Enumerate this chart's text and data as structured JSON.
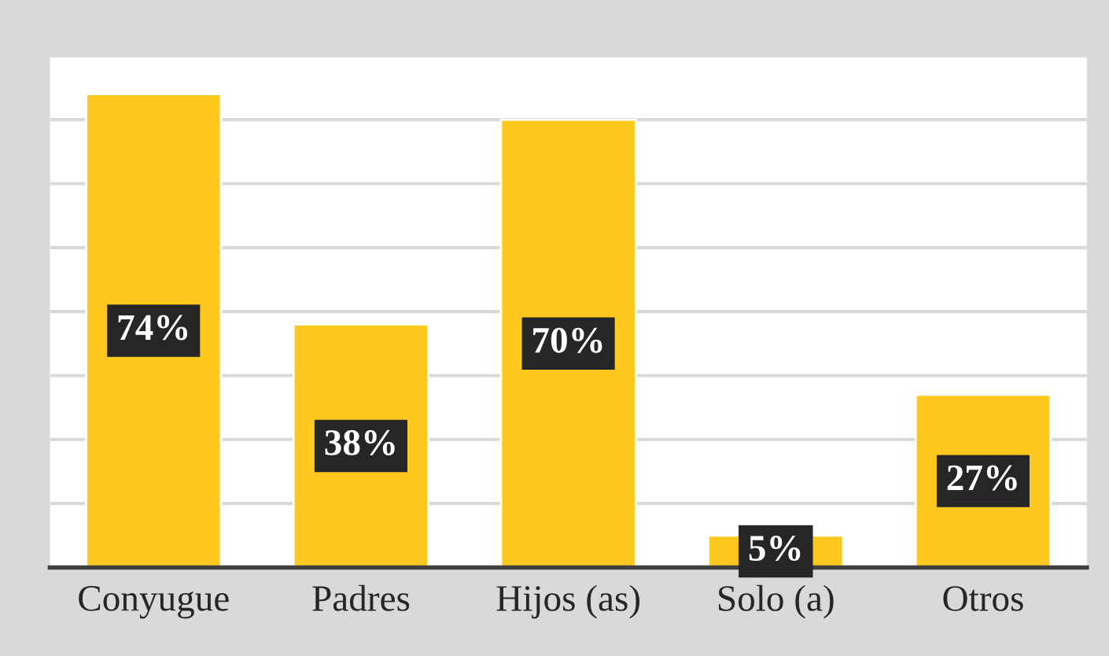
{
  "chart_data": {
    "type": "bar",
    "categories": [
      "Conyugue",
      "Padres",
      "Hijos (as)",
      "Solo (a)",
      "Otros"
    ],
    "values": [
      74,
      38,
      70,
      5,
      27
    ],
    "value_labels": [
      "74%",
      "38%",
      "70%",
      "5%",
      "27%"
    ],
    "color": "#ffc81e",
    "ylim": [
      0,
      80
    ],
    "yticks": [
      {
        "value": 0,
        "label": null
      },
      {
        "value": 10,
        "label": null
      },
      {
        "value": 20,
        "label": null
      },
      {
        "value": 30,
        "label": null
      },
      {
        "value": 40,
        "label": null
      },
      {
        "value": 50,
        "label": null
      },
      {
        "value": 60,
        "label": null
      },
      {
        "value": 70,
        "label": null
      },
      {
        "value": 80,
        "label": null
      }
    ],
    "tick_labels": "x",
    "grid": "y",
    "legend": false
  }
}
